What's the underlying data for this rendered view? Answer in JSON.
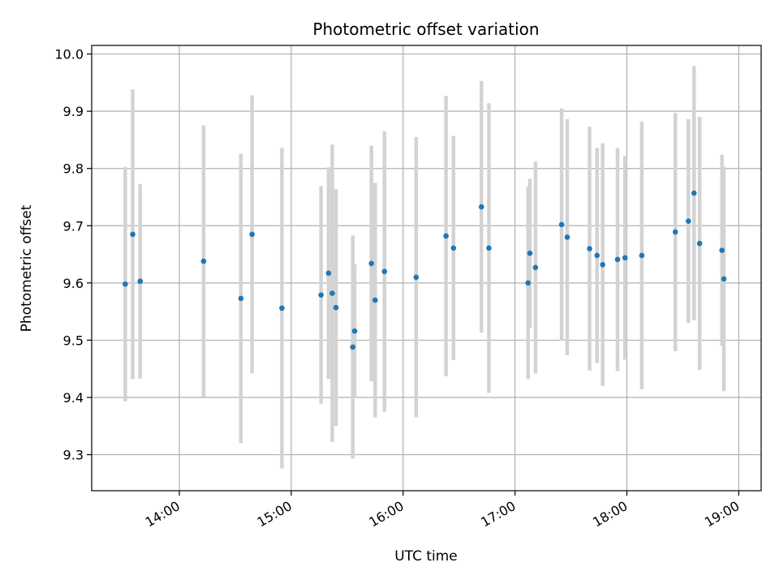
{
  "chart_data": {
    "type": "scatter",
    "title": "Photometric offset variation",
    "xlabel": "UTC time",
    "ylabel": "Photometric offset",
    "x_axis_type": "time",
    "xlim": [
      "13:13",
      "19:12"
    ],
    "ylim": [
      9.237,
      10.015
    ],
    "x_ticks": [
      "14:00",
      "15:00",
      "16:00",
      "17:00",
      "18:00",
      "19:00"
    ],
    "y_ticks": [
      "9.3",
      "9.4",
      "9.5",
      "9.6",
      "9.7",
      "9.8",
      "9.9",
      "10.0"
    ],
    "grid": true,
    "point_color": "#1f77b4",
    "errorbar_color": "#d3d3d3",
    "points": [
      {
        "x": "13:31",
        "y": 9.598,
        "yerr": 0.205
      },
      {
        "x": "13:35",
        "y": 9.685,
        "yerr": 0.253
      },
      {
        "x": "13:39",
        "y": 9.603,
        "yerr": 0.17
      },
      {
        "x": "14:13",
        "y": 9.638,
        "yerr": 0.237
      },
      {
        "x": "14:33",
        "y": 9.573,
        "yerr": 0.253
      },
      {
        "x": "14:39",
        "y": 9.685,
        "yerr": 0.243
      },
      {
        "x": "14:55",
        "y": 9.556,
        "yerr": 0.28
      },
      {
        "x": "15:16",
        "y": 9.579,
        "yerr": 0.19
      },
      {
        "x": "15:20",
        "y": 9.617,
        "yerr": 0.185
      },
      {
        "x": "15:22",
        "y": 9.582,
        "yerr": 0.26
      },
      {
        "x": "15:24",
        "y": 9.557,
        "yerr": 0.207
      },
      {
        "x": "15:33",
        "y": 9.488,
        "yerr": 0.195
      },
      {
        "x": "15:34",
        "y": 9.516,
        "yerr": 0.117
      },
      {
        "x": "15:43",
        "y": 9.634,
        "yerr": 0.206
      },
      {
        "x": "15:45",
        "y": 9.57,
        "yerr": 0.205
      },
      {
        "x": "15:50",
        "y": 9.62,
        "yerr": 0.245
      },
      {
        "x": "16:07",
        "y": 9.61,
        "yerr": 0.245
      },
      {
        "x": "16:23",
        "y": 9.682,
        "yerr": 0.245
      },
      {
        "x": "16:27",
        "y": 9.661,
        "yerr": 0.196
      },
      {
        "x": "16:42",
        "y": 9.733,
        "yerr": 0.22
      },
      {
        "x": "16:46",
        "y": 9.661,
        "yerr": 0.253
      },
      {
        "x": "17:07",
        "y": 9.6,
        "yerr": 0.168
      },
      {
        "x": "17:08",
        "y": 9.652,
        "yerr": 0.13
      },
      {
        "x": "17:11",
        "y": 9.627,
        "yerr": 0.185
      },
      {
        "x": "17:25",
        "y": 9.702,
        "yerr": 0.203
      },
      {
        "x": "17:28",
        "y": 9.68,
        "yerr": 0.206
      },
      {
        "x": "17:40",
        "y": 9.66,
        "yerr": 0.213
      },
      {
        "x": "17:44",
        "y": 9.648,
        "yerr": 0.188
      },
      {
        "x": "17:47",
        "y": 9.632,
        "yerr": 0.212
      },
      {
        "x": "17:55",
        "y": 9.641,
        "yerr": 0.195
      },
      {
        "x": "17:59",
        "y": 9.644,
        "yerr": 0.178
      },
      {
        "x": "18:08",
        "y": 9.648,
        "yerr": 0.234
      },
      {
        "x": "18:26",
        "y": 9.689,
        "yerr": 0.208
      },
      {
        "x": "18:33",
        "y": 9.708,
        "yerr": 0.178
      },
      {
        "x": "18:36",
        "y": 9.757,
        "yerr": 0.222
      },
      {
        "x": "18:39",
        "y": 9.669,
        "yerr": 0.221
      },
      {
        "x": "18:51",
        "y": 9.657,
        "yerr": 0.167
      },
      {
        "x": "18:52",
        "y": 9.607,
        "yerr": 0.196
      }
    ]
  }
}
